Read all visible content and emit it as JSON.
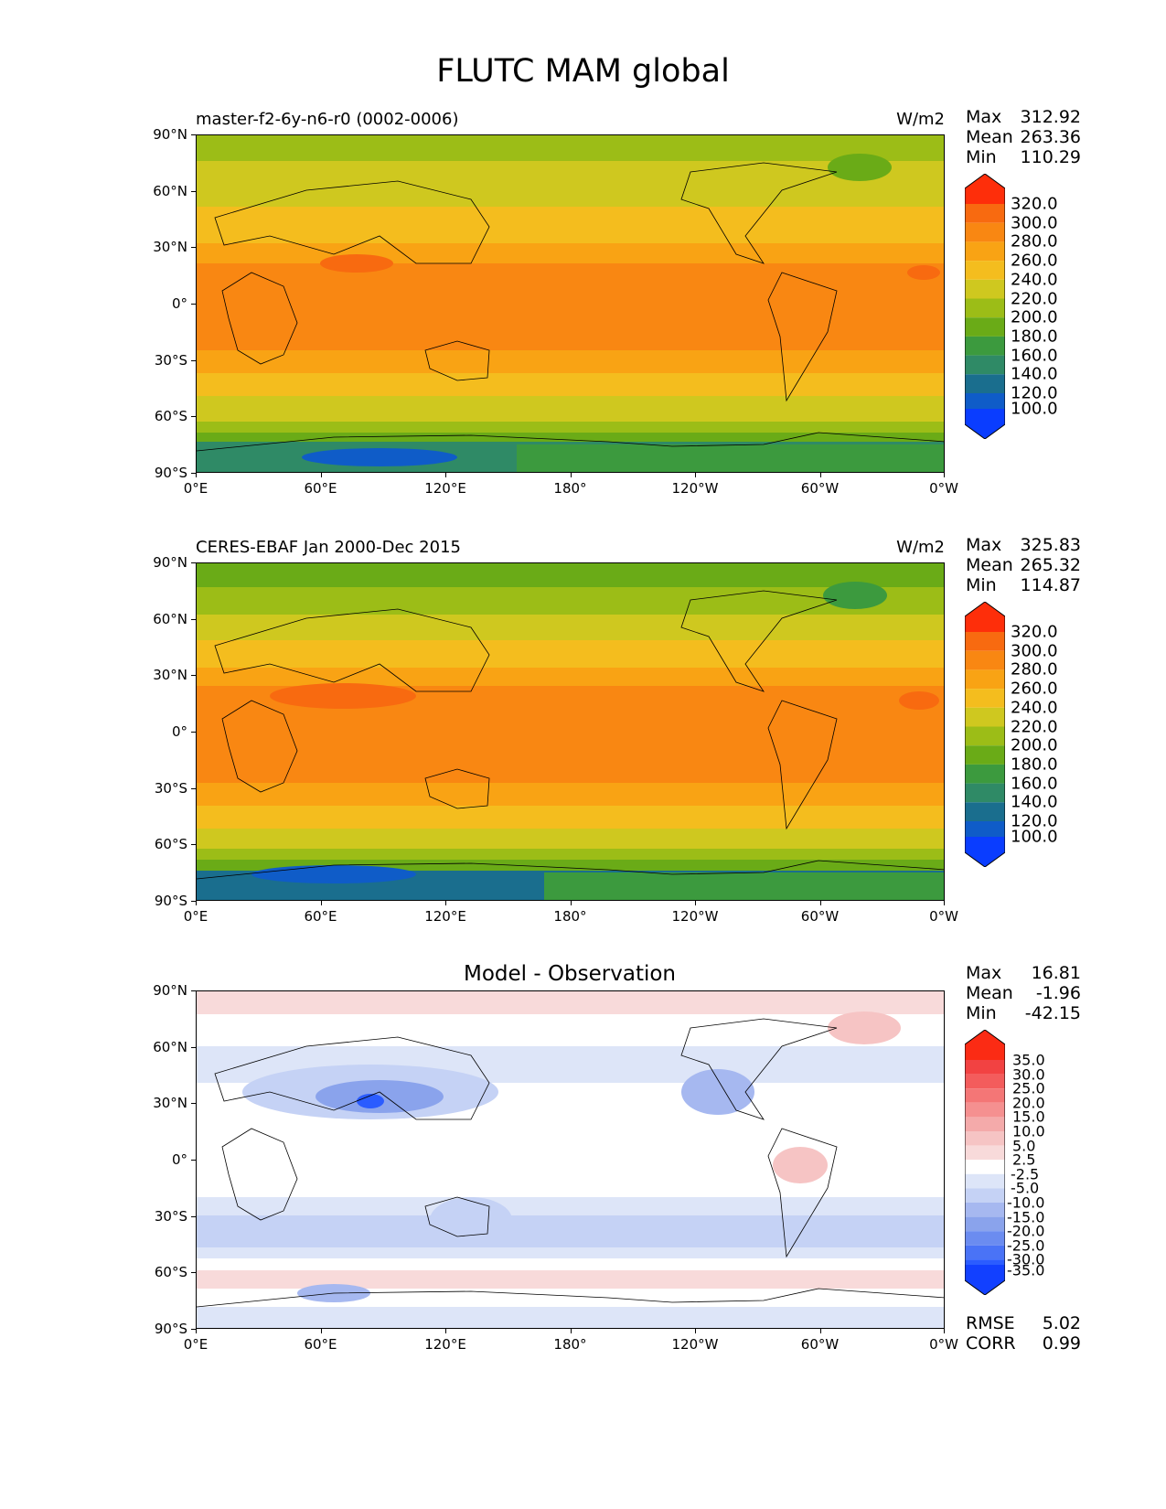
{
  "figure_title": "FLUTC MAM global",
  "axes": {
    "y_ticks": [
      "90°N",
      "60°N",
      "30°N",
      "0°",
      "30°S",
      "60°S",
      "90°S"
    ],
    "x_ticks": [
      "0°E",
      "60°E",
      "120°E",
      "180°",
      "120°W",
      "60°W",
      "0°W"
    ]
  },
  "panels": [
    {
      "title_left": "master-f2-6y-n6-r0 (0002-0006)",
      "title_center": "",
      "units": "W/m2",
      "stats": [
        {
          "label": "Max",
          "value": "312.92"
        },
        {
          "label": "Mean",
          "value": "263.36"
        },
        {
          "label": "Min",
          "value": "110.29"
        }
      ],
      "colorbar": {
        "labels": [
          "320.0",
          "300.0",
          "280.0",
          "260.0",
          "240.0",
          "220.0",
          "200.0",
          "180.0",
          "160.0",
          "140.0",
          "120.0",
          "100.0"
        ],
        "colors_low_to_high": [
          "#0a3dff",
          "#0f5cc8",
          "#1a6e8e",
          "#2f8a66",
          "#3c9a3e",
          "#6aab17",
          "#9cbd17",
          "#cfc81f",
          "#f4bd1e",
          "#f9a314",
          "#f98712",
          "#f86a10",
          "#fe2e0a"
        ]
      }
    },
    {
      "title_left": "CERES-EBAF Jan 2000-Dec 2015",
      "title_center": "",
      "units": "W/m2",
      "stats": [
        {
          "label": "Max",
          "value": "325.83"
        },
        {
          "label": "Mean",
          "value": "265.32"
        },
        {
          "label": "Min",
          "value": "114.87"
        }
      ],
      "colorbar": {
        "labels": [
          "320.0",
          "300.0",
          "280.0",
          "260.0",
          "240.0",
          "220.0",
          "200.0",
          "180.0",
          "160.0",
          "140.0",
          "120.0",
          "100.0"
        ],
        "colors_low_to_high": [
          "#0a3dff",
          "#0f5cc8",
          "#1a6e8e",
          "#2f8a66",
          "#3c9a3e",
          "#6aab17",
          "#9cbd17",
          "#cfc81f",
          "#f4bd1e",
          "#f9a314",
          "#f98712",
          "#f86a10",
          "#fe2e0a"
        ]
      }
    },
    {
      "title_left": "",
      "title_center": "Model - Observation",
      "units": "",
      "stats": [
        {
          "label": "Max",
          "value": "16.81"
        },
        {
          "label": "Mean",
          "value": "-1.96"
        },
        {
          "label": "Min",
          "value": "-42.15"
        }
      ],
      "colorbar": {
        "labels": [
          "35.0",
          "30.0",
          "25.0",
          "20.0",
          "15.0",
          "10.0",
          "5.0",
          "2.5",
          "-2.5",
          "-5.0",
          "-10.0",
          "-15.0",
          "-20.0",
          "-25.0",
          "-30.0",
          "-35.0"
        ],
        "colors_low_to_high": [
          "#1240ff",
          "#2b5cff",
          "#4a73f6",
          "#6b8cf0",
          "#8aa3ec",
          "#a6b8f0",
          "#c5d2f5",
          "#dde5f8",
          "#ffffff",
          "#f8dada",
          "#f6c4c4",
          "#f4aaaa",
          "#f59090",
          "#f47676",
          "#f35c5c",
          "#f24242",
          "#fb2b14"
        ]
      },
      "footer_stats": [
        {
          "label": "RMSE",
          "value": "5.02"
        },
        {
          "label": "CORR",
          "value": "0.99"
        }
      ]
    }
  ]
}
